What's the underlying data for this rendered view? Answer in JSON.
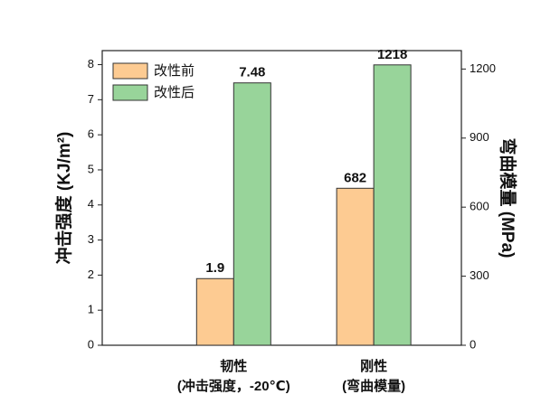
{
  "chart_data": {
    "type": "bar",
    "categories": [
      [
        "韧性",
        "(冲击强度，-20℃)"
      ],
      [
        "刚性",
        "(弯曲模量)"
      ]
    ],
    "category_axes": [
      "y",
      "y2"
    ],
    "series": [
      {
        "name": "改性前",
        "color": "#fdcb92",
        "values": [
          1.9,
          682
        ]
      },
      {
        "name": "改性后",
        "color": "#98d49a",
        "values": [
          7.48,
          1218
        ]
      }
    ],
    "y_label": "冲击强度 (KJ/m²)",
    "y2_label": "弯曲模量 (MPa)",
    "ylim": [
      0,
      8.4
    ],
    "yticks": [
      0,
      1,
      2,
      3,
      4,
      5,
      6,
      7,
      8
    ],
    "y2lim": [
      0,
      1280
    ],
    "y2ticks": [
      0,
      300,
      600,
      900,
      1200
    ],
    "legend": "upper-left"
  }
}
